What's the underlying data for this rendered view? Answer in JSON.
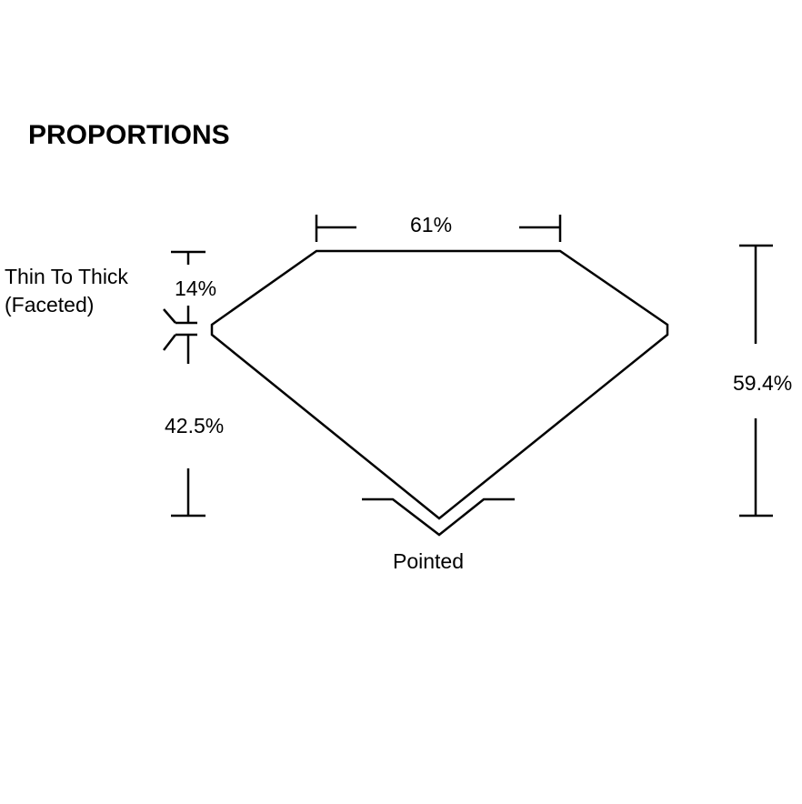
{
  "title": "PROPORTIONS",
  "labels": {
    "table": "61%",
    "girdle_line1": "Thin To Thick",
    "girdle_line2": "(Faceted)",
    "crown": "14%",
    "pavilion": "42.5%",
    "depth": "59.4%",
    "culet": "Pointed"
  }
}
